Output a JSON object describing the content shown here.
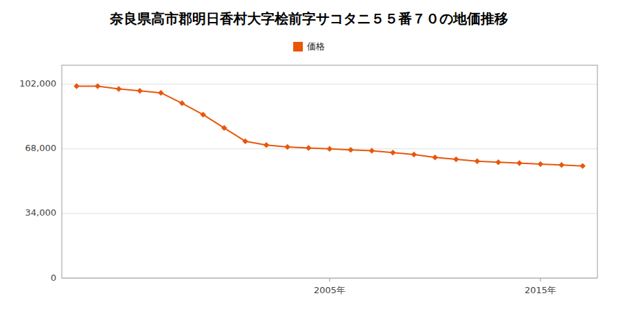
{
  "chart_data": {
    "type": "line",
    "title": "奈良県高市郡明日香村大字桧前字サコタニ５５番７０の地価推移",
    "x": [
      1993,
      1994,
      1995,
      1996,
      1997,
      1998,
      1999,
      2000,
      2001,
      2002,
      2003,
      2004,
      2005,
      2006,
      2007,
      2008,
      2009,
      2010,
      2011,
      2012,
      2013,
      2014,
      2015,
      2016,
      2017
    ],
    "series": [
      {
        "name": "価格",
        "color": "#e8560a",
        "marker": "diamond",
        "values": [
          101000,
          101000,
          99500,
          98500,
          97500,
          92000,
          86000,
          79000,
          72000,
          70000,
          69000,
          68500,
          68000,
          67500,
          67000,
          66000,
          65000,
          63500,
          62500,
          61500,
          61000,
          60500,
          60000,
          59500,
          59000
        ]
      }
    ],
    "xlim": [
      1992.3,
      2017.7
    ],
    "xticks": [
      {
        "value": 2005,
        "label": "2005年"
      },
      {
        "value": 2015,
        "label": "2015年"
      }
    ],
    "ylim": [
      0,
      112000
    ],
    "yticks": [
      0,
      {
        "value": 34000,
        "label": "34,000"
      },
      {
        "value": 68000,
        "label": "68,000"
      },
      {
        "value": 102000,
        "label": "102,000"
      }
    ],
    "grid": true,
    "legend": "top"
  }
}
